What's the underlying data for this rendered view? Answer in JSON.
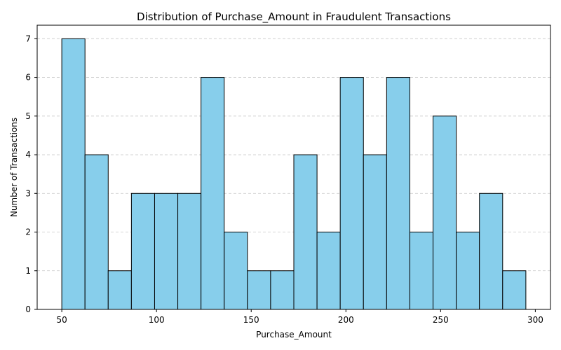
{
  "chart_data": {
    "type": "bar",
    "title": "Distribution of Purchase_Amount in Fraudulent Transactions",
    "xlabel": "Purchase_Amount",
    "ylabel": "Number of Transactions",
    "bar_color": "#87ceeb",
    "edge_color": "#000000",
    "grid": "y-dashed",
    "xlim": [
      37,
      308
    ],
    "ylim": [
      0,
      7.35
    ],
    "xticks": [
      50,
      100,
      150,
      200,
      250,
      300
    ],
    "yticks": [
      0,
      1,
      2,
      3,
      4,
      5,
      6,
      7
    ],
    "bin_start": 50,
    "bin_width": 12.25,
    "values": [
      7,
      4,
      1,
      3,
      3,
      3,
      6,
      2,
      1,
      1,
      4,
      2,
      6,
      4,
      6,
      2,
      5,
      2,
      3,
      1
    ]
  }
}
